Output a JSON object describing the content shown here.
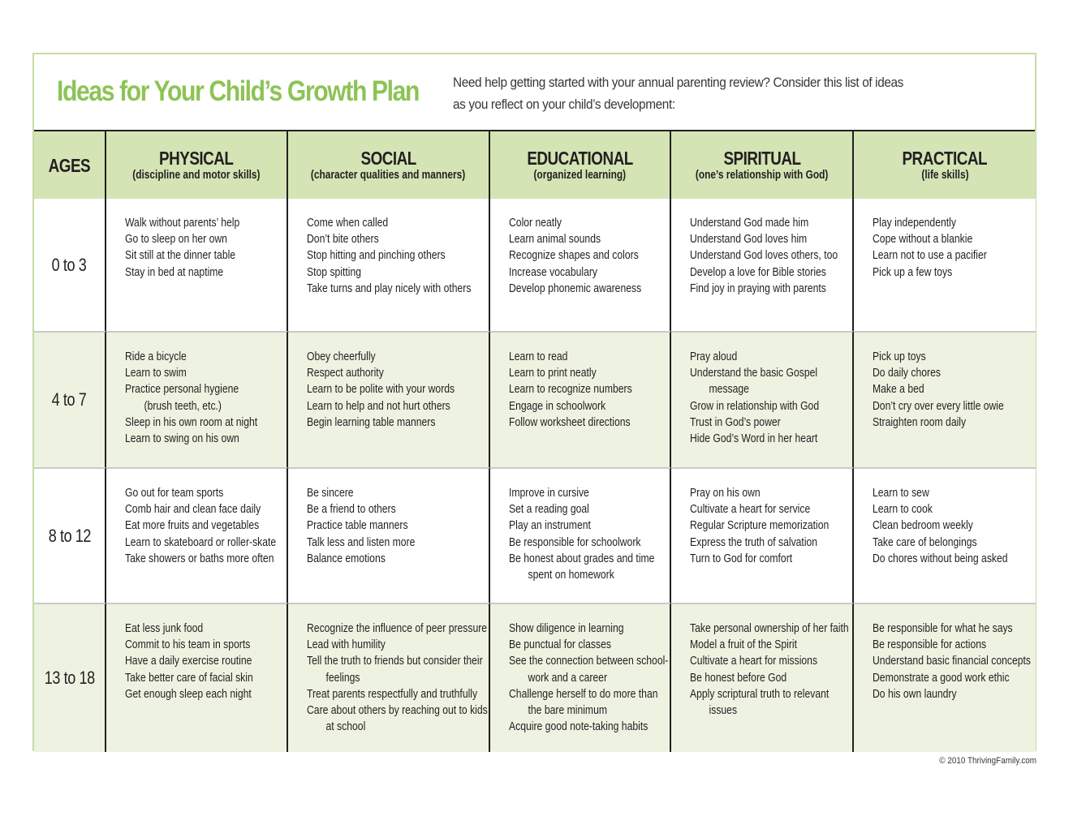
{
  "document": {
    "title": "Ideas for Your Child’s Growth Plan",
    "intro_line1": "Need help getting started with your annual parenting review? Consider this list of ideas",
    "intro_line2": "as you reflect on your child’s development:",
    "footer": "© 2010 ThrivingFamily.com",
    "colors": {
      "title_green": "#8dc356",
      "header_fill": "#d4e4b4",
      "tint_row_fill": "#eef2e1",
      "border_green": "#c6dca4",
      "rule_dark": "#231f20"
    }
  },
  "table": {
    "headers": [
      {
        "name": "AGES",
        "sub": ""
      },
      {
        "name": "PHYSICAL",
        "sub": "(discipline and motor skills)"
      },
      {
        "name": "SOCIAL",
        "sub": "(character qualities and manners)"
      },
      {
        "name": "EDUCATIONAL",
        "sub": "(organized learning)"
      },
      {
        "name": "SPIRITUAL",
        "sub": "(one’s relationship with God)"
      },
      {
        "name": "PRACTICAL",
        "sub": "(life skills)"
      }
    ],
    "rows": [
      {
        "age": "0 to 3",
        "physical": [
          "Walk without parents’ help",
          "Go to sleep on her own",
          "Sit still at the dinner table",
          "Stay in bed at naptime"
        ],
        "social": [
          "Come when called",
          "Don’t bite others",
          "Stop hitting and pinching others",
          "Stop spitting",
          "Take turns and play nicely with others"
        ],
        "educational": [
          "Color neatly",
          "Learn animal sounds",
          "Recognize shapes and colors",
          "Increase vocabulary",
          "Develop phonemic awareness"
        ],
        "spiritual": [
          "Understand God made him",
          "Understand God loves him",
          "Understand God loves others, too",
          "Develop a love for Bible stories",
          "Find joy in praying with parents"
        ],
        "practical": [
          "Play independently",
          "Cope without a blankie",
          "Learn not to use a pacifier",
          "Pick up a few toys"
        ]
      },
      {
        "age": "4 to 7",
        "physical": [
          "Ride a bicycle",
          "Learn to swim",
          "Practice personal hygiene",
          "(brush teeth, etc.)",
          "Sleep in his own room at night",
          "Learn to swing on his own"
        ],
        "social": [
          "Obey cheerfully",
          "Respect authority",
          "Learn to be polite with your words",
          "Learn to help and not hurt others",
          "Begin learning table manners"
        ],
        "educational": [
          "Learn to read",
          "Learn to print neatly",
          "Learn to recognize numbers",
          "Engage in schoolwork",
          "Follow worksheet directions"
        ],
        "spiritual": [
          "Pray aloud",
          "Understand the basic Gospel",
          "message",
          "Grow in relationship with God",
          "Trust in God’s power",
          "Hide God’s Word in her heart"
        ],
        "practical": [
          "Pick up toys",
          "Do daily chores",
          "Make a bed",
          "Don’t cry over every little owie",
          "Straighten room daily"
        ]
      },
      {
        "age": "8 to 12",
        "physical": [
          "Go out for team sports",
          "Comb hair and clean face daily",
          "Eat more fruits and vegetables",
          "Learn to skateboard or roller-skate",
          "Take showers or baths more often"
        ],
        "social": [
          "Be sincere",
          "Be a friend to others",
          "Practice table manners",
          "Talk less and listen more",
          "Balance emotions"
        ],
        "educational": [
          "Improve in cursive",
          "Set a reading goal",
          "Play an instrument",
          "Be responsible for schoolwork",
          "Be honest about grades and time",
          "spent on homework"
        ],
        "spiritual": [
          "Pray on his own",
          "Cultivate a heart for service",
          "Regular Scripture memorization",
          "Express the truth of salvation",
          "Turn to God for comfort"
        ],
        "practical": [
          "Learn to sew",
          "Learn to cook",
          "Clean bedroom weekly",
          "Take care of belongings",
          "Do chores without being asked"
        ]
      },
      {
        "age": "13 to 18",
        "physical": [
          "Eat less junk food",
          "Commit to his team in sports",
          "Have a daily exercise routine",
          "Take better care of facial skin",
          "Get enough sleep each night"
        ],
        "social": [
          "Recognize the influence of peer pressure",
          "Lead with humility",
          "Tell the truth to friends but consider their",
          "feelings",
          "Treat parents respectfully and truthfully",
          "Care about others by reaching out to kids",
          "at school"
        ],
        "educational": [
          "Show diligence in learning",
          "Be punctual for classes",
          "See the connection between school-",
          "work and a career",
          "Challenge herself to do more than",
          "the bare minimum",
          "Acquire good note-taking habits"
        ],
        "spiritual": [
          "Take personal ownership of her faith",
          "Model a fruit of the Spirit",
          "Cultivate a heart for missions",
          "Be honest before God",
          "Apply scriptural truth to relevant",
          "issues"
        ],
        "practical": [
          "Be responsible for what he says",
          "Be responsible for actions",
          "Understand basic financial concepts",
          "Demonstrate a good work ethic",
          "Do his own laundry"
        ]
      }
    ]
  }
}
